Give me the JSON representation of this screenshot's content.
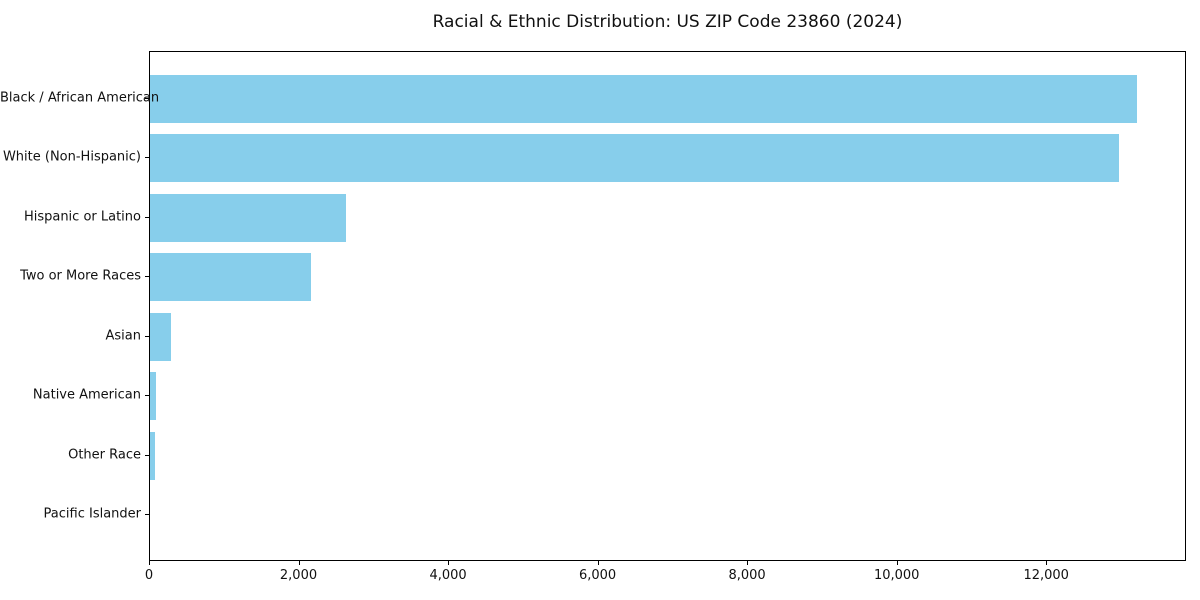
{
  "title": "Racial & Ethnic Distribution: US ZIP Code 23860 (2024)",
  "colors": {
    "bar": "#87CEEB",
    "spine": "#000000",
    "background": "#FFFFFF",
    "text": "#111111"
  },
  "chart_data": {
    "type": "bar",
    "orientation": "horizontal",
    "title": "Racial & Ethnic Distribution: US ZIP Code 23860 (2024)",
    "categories": [
      "Black / African American",
      "White (Non-Hispanic)",
      "Hispanic or Latino",
      "Two or More Races",
      "Asian",
      "Native American",
      "Other Race",
      "Pacific Islander"
    ],
    "values": [
      13200,
      12960,
      2620,
      2150,
      280,
      75,
      65,
      0
    ],
    "xlabel": "",
    "ylabel": "",
    "xlim": [
      0,
      13870
    ],
    "x_ticks": [
      0,
      2000,
      4000,
      6000,
      8000,
      10000,
      12000
    ],
    "x_tick_labels": [
      "0",
      "2,000",
      "4,000",
      "6,000",
      "8,000",
      "10,000",
      "12,000"
    ],
    "bar_color": "#87CEEB",
    "grid": false,
    "legend": null
  }
}
